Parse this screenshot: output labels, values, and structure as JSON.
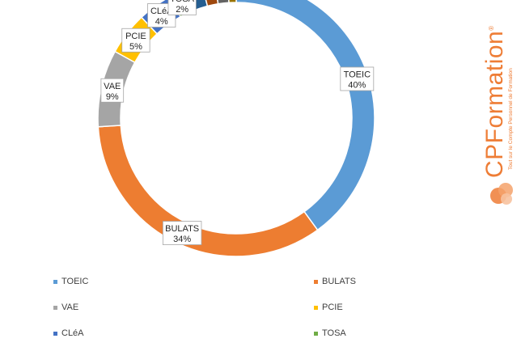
{
  "chart_data": {
    "type": "pie",
    "style": "donut",
    "slices": [
      {
        "name": "TOEIC",
        "value": 40,
        "color": "#5b9bd5",
        "label": "TOEIC",
        "pct": "40%"
      },
      {
        "name": "BULATS",
        "value": 34,
        "color": "#ed7d31",
        "label": "BULATS",
        "pct": "34%"
      },
      {
        "name": "VAE",
        "value": 9,
        "color": "#a5a5a5",
        "label": "VAE",
        "pct": "9%"
      },
      {
        "name": "PCIE",
        "value": 5,
        "color": "#ffc000",
        "label": "PCIE",
        "pct": "5%"
      },
      {
        "name": "CLéA",
        "value": 4,
        "color": "#4472c4",
        "label": "CLéA",
        "pct": "4%"
      },
      {
        "name": "TOSA",
        "value": 2,
        "color": "#70ad47",
        "label": "TOSA",
        "pct": "2%"
      },
      {
        "name": "",
        "value": 2,
        "color": "#255e91",
        "label": "",
        "pct": ""
      },
      {
        "name": "",
        "value": 1.5,
        "color": "#9e480e",
        "label": "",
        "pct": ""
      },
      {
        "name": "",
        "value": 1.5,
        "color": "#636363",
        "label": "",
        "pct": ""
      },
      {
        "name": "",
        "value": 1,
        "color": "#997300",
        "label": "",
        "pct": ""
      }
    ],
    "legend": [
      {
        "label": "TOEIC",
        "color": "#5b9bd5"
      },
      {
        "label": "BULATS",
        "color": "#ed7d31"
      },
      {
        "label": "VAE",
        "color": "#a5a5a5"
      },
      {
        "label": "PCIE",
        "color": "#ffc000"
      },
      {
        "label": "CLéA",
        "color": "#4472c4"
      },
      {
        "label": "TOSA",
        "color": "#70ad47"
      }
    ],
    "legend_position": "bottom"
  },
  "logo": {
    "cp": "CP",
    "rest": "Formation",
    "reg": "®",
    "tagline": "Tout sur le Compte Personnel de Formation"
  }
}
